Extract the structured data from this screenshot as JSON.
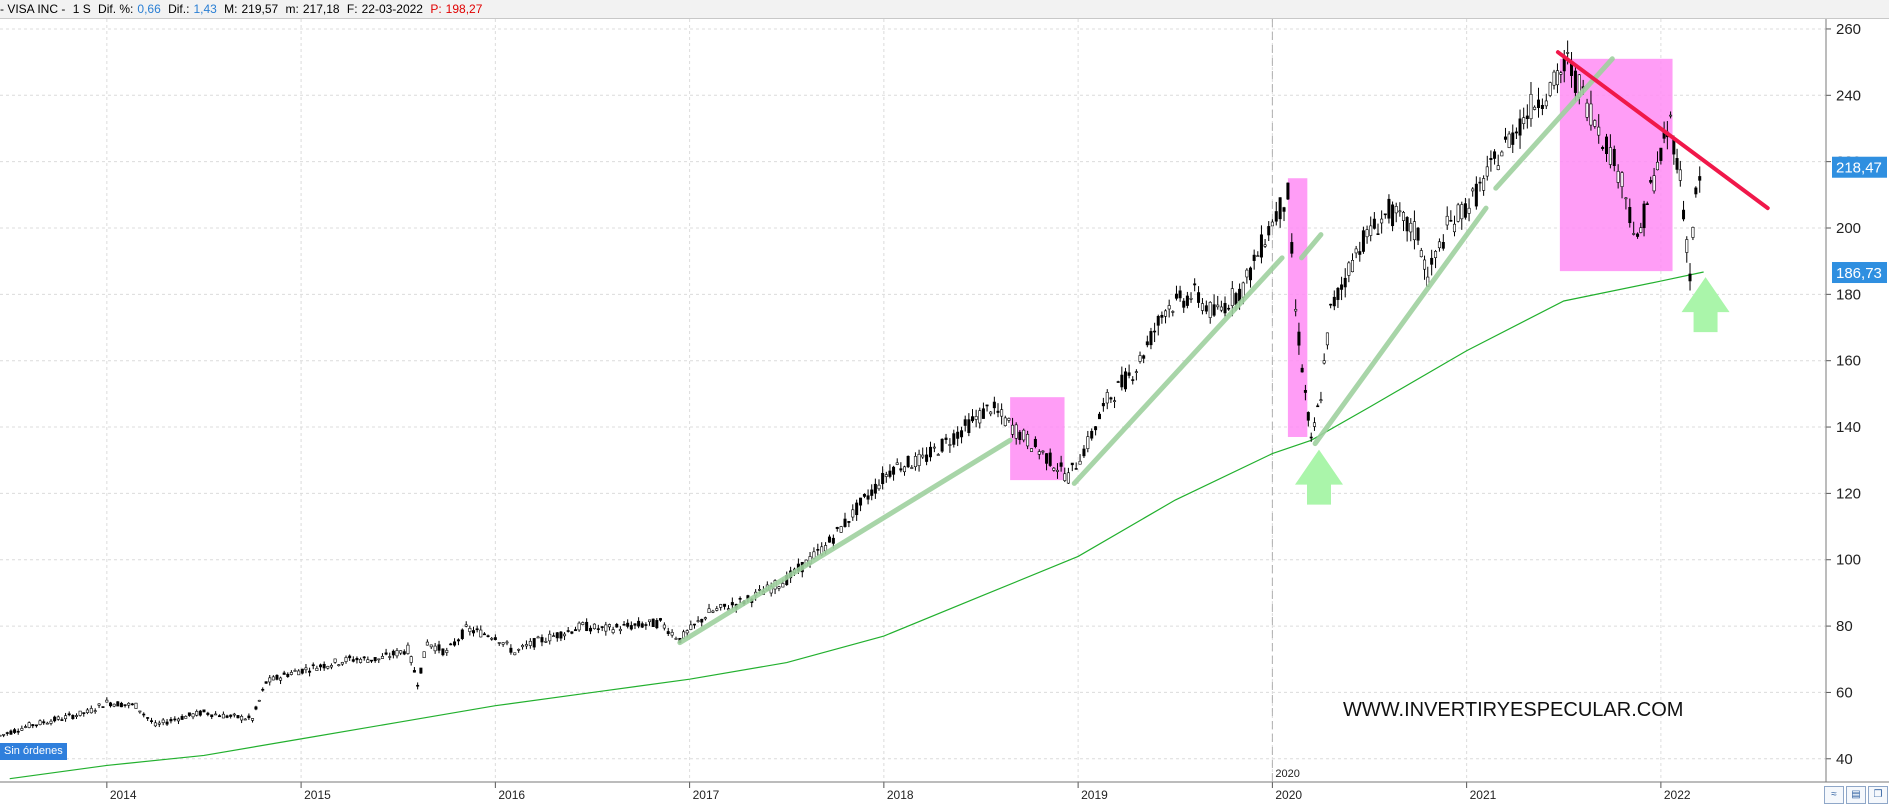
{
  "infobar": {
    "name": "- VISA INC -",
    "period": "1 S",
    "dif_pct_label": "Dif. %:",
    "dif_pct_value": "0,66",
    "dif_label": "Dif.:",
    "dif_value": "1,43",
    "max_label": "M:",
    "max_value": "219,57",
    "min_label": "m:",
    "min_value": "217,18",
    "date_label": "F:",
    "date_value": "22-03-2022",
    "price_label": "P:",
    "price_value": "198,27"
  },
  "orders_label": "Sin órdenes",
  "watermark": "WWW.INVERTIRYESPECULAR.COM",
  "colors": {
    "candle": "#000000",
    "ma": "#22b02e",
    "trendline": "#9fd19f",
    "resistance": "#f0184a",
    "box": "#ff8cf5",
    "arrow": "#aaf5aa",
    "price_tag": "#2f8fe0"
  },
  "chart_data": {
    "type": "line",
    "title": "",
    "xlabel": "",
    "ylabel": "",
    "xlim": [
      2013.45,
      2022.85
    ],
    "ylim": [
      33,
      263
    ],
    "y_ticks": [
      40,
      60,
      80,
      100,
      120,
      140,
      160,
      180,
      200,
      220,
      240,
      260
    ],
    "x_ticks": [
      {
        "label": "2014",
        "x": 2014
      },
      {
        "label": "2015",
        "x": 2015
      },
      {
        "label": "2016",
        "x": 2016
      },
      {
        "label": "2017",
        "x": 2017
      },
      {
        "label": "2018",
        "x": 2018
      },
      {
        "label": "2019",
        "x": 2019
      },
      {
        "label": "2020",
        "x": 2020
      },
      {
        "label": "2021",
        "x": 2021
      },
      {
        "label": "2022",
        "x": 2022
      }
    ],
    "marked_date_label": "2020",
    "marked_date_x": 2020,
    "grid": true,
    "series": [
      {
        "name": "",
        "style": "candles",
        "x": [
          2013.45,
          2013.6,
          2013.75,
          2013.9,
          2014.0,
          2014.15,
          2014.25,
          2014.35,
          2014.5,
          2014.6,
          2014.75,
          2014.82,
          2014.95,
          2015.1,
          2015.25,
          2015.4,
          2015.55,
          2015.6,
          2015.65,
          2015.75,
          2015.85,
          2016.0,
          2016.1,
          2016.2,
          2016.3,
          2016.45,
          2016.55,
          2016.7,
          2016.85,
          2016.95,
          2017.1,
          2017.3,
          2017.5,
          2017.7,
          2017.9,
          2018.05,
          2018.2,
          2018.4,
          2018.55,
          2018.7,
          2018.8,
          2018.95,
          2019.05,
          2019.15,
          2019.3,
          2019.45,
          2019.6,
          2019.7,
          2019.85,
          2020.0,
          2020.08,
          2020.12,
          2020.17,
          2020.2,
          2020.25,
          2020.3,
          2020.45,
          2020.6,
          2020.75,
          2020.8,
          2020.9,
          2021.05,
          2021.2,
          2021.35,
          2021.45,
          2021.52,
          2021.6,
          2021.7,
          2021.8,
          2021.88,
          2021.93,
          2022.0,
          2022.05,
          2022.1,
          2022.15,
          2022.18,
          2022.22
        ],
        "values": [
          47,
          50,
          52,
          54,
          57,
          56,
          50,
          52,
          54,
          53,
          52,
          63,
          66,
          68,
          70,
          70,
          73,
          63,
          75,
          72,
          79,
          77,
          72,
          75,
          77,
          80,
          79,
          80,
          81,
          76,
          84,
          88,
          94,
          104,
          118,
          128,
          130,
          139,
          146,
          138,
          133,
          125,
          135,
          148,
          158,
          176,
          180,
          174,
          182,
          202,
          210,
          175,
          150,
          135,
          150,
          175,
          195,
          205,
          198,
          185,
          200,
          210,
          225,
          238,
          243,
          250,
          240,
          228,
          215,
          195,
          208,
          222,
          232,
          215,
          186,
          210,
          218
        ]
      },
      {
        "name": "",
        "style": "line",
        "x": [
          2013.5,
          2014.0,
          2014.5,
          2015.0,
          2015.5,
          2016.0,
          2016.5,
          2017.0,
          2017.5,
          2018.0,
          2018.5,
          2019.0,
          2019.5,
          2020.0,
          2020.2,
          2020.5,
          2021.0,
          2021.5,
          2022.0,
          2022.22
        ],
        "values": [
          34,
          38,
          41,
          46,
          51,
          56,
          60,
          64,
          69,
          77,
          89,
          101,
          118,
          132,
          136,
          146,
          163,
          178,
          184,
          186.73
        ]
      }
    ],
    "trendlines": [
      {
        "x": [
          2016.95,
          2018.65
        ],
        "values": [
          75,
          136
        ]
      },
      {
        "x": [
          2018.98,
          2020.05
        ],
        "values": [
          123,
          191
        ]
      },
      {
        "x": [
          2020.22,
          2021.1
        ],
        "values": [
          135,
          206
        ]
      },
      {
        "x": [
          2021.15,
          2021.75
        ],
        "values": [
          212,
          251
        ]
      },
      {
        "x": [
          2020.15,
          2020.25
        ],
        "values": [
          191,
          198
        ]
      }
    ],
    "resistance_line": {
      "x": [
        2021.47,
        2022.55
      ],
      "values": [
        253,
        206
      ]
    },
    "highlight_boxes": [
      {
        "x": [
          2018.65,
          2018.93
        ],
        "values": [
          124,
          149
        ]
      },
      {
        "x": [
          2020.08,
          2020.18
        ],
        "values": [
          137,
          215
        ]
      },
      {
        "x": [
          2021.48,
          2022.06
        ],
        "values": [
          187,
          251
        ]
      }
    ],
    "arrows_up": [
      {
        "x": 2020.24,
        "tip": 135
      },
      {
        "x": 2022.23,
        "tip": 187
      }
    ],
    "price_tags": [
      {
        "label": "218,47",
        "value": 218.47
      },
      {
        "label": "186,73",
        "value": 186.73
      }
    ]
  }
}
